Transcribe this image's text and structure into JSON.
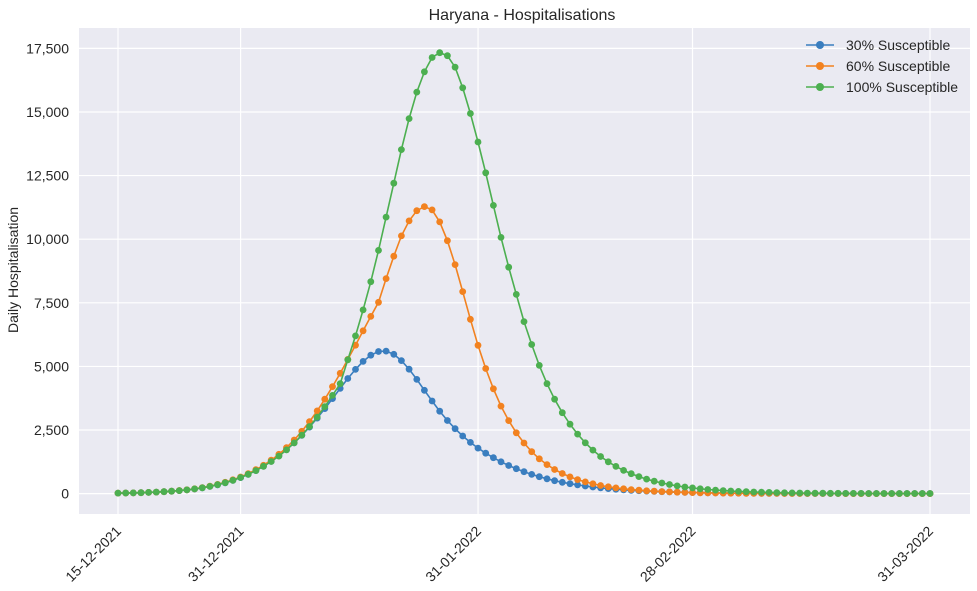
{
  "chart_data": {
    "type": "line",
    "title": "Haryana - Hospitalisations",
    "xlabel": "",
    "ylabel": "Daily Hospitalisation",
    "x_start": "15-12-2021",
    "x_end": "31-03-2022",
    "x_ticks": [
      "15-12-2021",
      "31-12-2021",
      "31-01-2022",
      "28-02-2022",
      "31-03-2022"
    ],
    "y_ticks": [
      0,
      2500,
      5000,
      7500,
      10000,
      12500,
      15000,
      17500
    ],
    "y_tick_labels": [
      "0",
      "2,500",
      "5,000",
      "7,500",
      "10,000",
      "12,500",
      "15,000",
      "17,500"
    ],
    "ylim": [
      -800,
      18300
    ],
    "grid": true,
    "legend_position": "top-right",
    "background": "#eaeaf2",
    "series": [
      {
        "name": "30% Susceptible",
        "color": "#3a7ebf",
        "values": [
          20,
          25,
          30,
          38,
          48,
          60,
          75,
          95,
          118,
          148,
          184,
          228,
          283,
          349,
          428,
          521,
          631,
          759,
          907,
          1077,
          1270,
          1486,
          1727,
          1995,
          2290,
          2614,
          2968,
          3344,
          3737,
          4135,
          4524,
          4884,
          5198,
          5442,
          5586,
          5602,
          5478,
          5230,
          4890,
          4490,
          4063,
          3640,
          3240,
          2876,
          2551,
          2264,
          2012,
          1790,
          1591,
          1413,
          1252,
          1108,
          979,
          862,
          758,
          665,
          583,
          510,
          447,
          391,
          342,
          299,
          261,
          228,
          199,
          174,
          152,
          133,
          116,
          101,
          88,
          77,
          67,
          59,
          51,
          45,
          39,
          34,
          30,
          26,
          23,
          20,
          18,
          16,
          14,
          12,
          11,
          10,
          9,
          8,
          7,
          7,
          6,
          6,
          5,
          5,
          5,
          4,
          4,
          4,
          4,
          4,
          4,
          4,
          4,
          4,
          4
        ]
      },
      {
        "name": "60% Susceptible",
        "color": "#f28220",
        "values": [
          20,
          25,
          31,
          39,
          49,
          62,
          78,
          98,
          122,
          153,
          191,
          237,
          294,
          363,
          446,
          543,
          656,
          788,
          940,
          1115,
          1316,
          1547,
          1810,
          2110,
          2450,
          2830,
          3251,
          3712,
          4207,
          4730,
          5274,
          5834,
          6400,
          6964,
          7520,
          8450,
          9330,
          10130,
          10720,
          11120,
          11280,
          11150,
          10680,
          9940,
          9000,
          7940,
          6850,
          5830,
          4920,
          4120,
          3440,
          2870,
          2390,
          1990,
          1650,
          1370,
          1140,
          950,
          790,
          660,
          550,
          460,
          385,
          322,
          270,
          226,
          190,
          160,
          134,
          113,
          95,
          80,
          68,
          57,
          48,
          41,
          35,
          30,
          25,
          22,
          19,
          16,
          14,
          12,
          11,
          9,
          8,
          7,
          6,
          6,
          5,
          5,
          4,
          4,
          4,
          3,
          3,
          3,
          3,
          3,
          3,
          3,
          3,
          3,
          3,
          3,
          3
        ]
      },
      {
        "name": "100% Susceptible",
        "color": "#4caf50",
        "values": [
          20,
          25,
          31,
          39,
          49,
          61,
          76,
          95,
          119,
          149,
          186,
          231,
          286,
          352,
          431,
          524,
          633,
          760,
          907,
          1074,
          1262,
          1476,
          1720,
          1995,
          2300,
          2640,
          3010,
          3420,
          3860,
          4320,
          5260,
          6200,
          7220,
          8330,
          9560,
          10870,
          12200,
          13520,
          14740,
          15780,
          16580,
          17140,
          17330,
          17210,
          16760,
          15950,
          14940,
          13820,
          12610,
          11330,
          10070,
          8900,
          7830,
          6760,
          5860,
          5040,
          4320,
          3710,
          3180,
          2730,
          2340,
          2000,
          1710,
          1460,
          1250,
          1070,
          915,
          783,
          670,
          573,
          490,
          419,
          358,
          306,
          262,
          224,
          191,
          164,
          140,
          120,
          103,
          88,
          75,
          64,
          55,
          47,
          40,
          34,
          29,
          25,
          21,
          18,
          16,
          14,
          12,
          10,
          9,
          8,
          7,
          6,
          5,
          5,
          4,
          4,
          4,
          4,
          4
        ]
      }
    ]
  }
}
